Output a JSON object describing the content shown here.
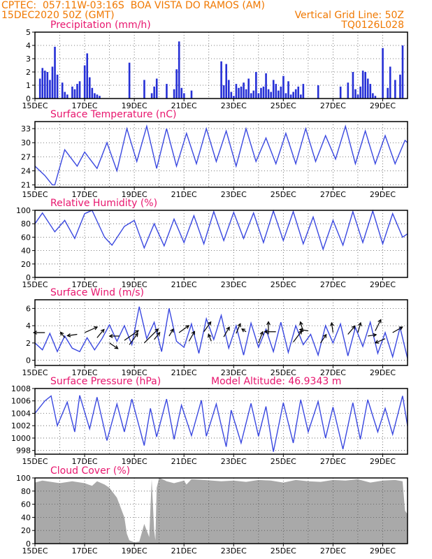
{
  "header": {
    "line1_left": "CPTEC:  057:11W-03:16S  BOA VISTA DO RAMOS (AM)",
    "line2_left": "15DEC2020 50Z (GMT)",
    "line1_right": "Vertical Grid Line: 50Z",
    "line2_right": "TQ0126L028",
    "color": "#f07800"
  },
  "colors": {
    "line": "#3a48e0",
    "bar": "#2630d6",
    "cloud": "#a9a9a9",
    "title": "#e8166e",
    "grid": "#555555"
  },
  "x_ticks": [
    "15DEC",
    "17DEC",
    "19DEC",
    "21DEC",
    "23DEC",
    "25DEC",
    "27DEC",
    "29DEC"
  ],
  "chart_data": [
    {
      "type": "bar",
      "title": "Precipitation (mm/h)",
      "ylim": [
        0,
        5
      ],
      "yticks": [
        0,
        1,
        2,
        3,
        4,
        5
      ],
      "x": [
        0.2,
        0.3,
        0.4,
        0.5,
        0.6,
        0.7,
        0.8,
        0.9,
        1.1,
        1.2,
        1.3,
        1.5,
        1.6,
        1.7,
        1.8,
        2.0,
        2.1,
        2.2,
        2.3,
        2.4,
        2.5,
        2.6,
        3.8,
        4.4,
        4.7,
        4.8,
        4.9,
        5.3,
        5.6,
        5.7,
        5.8,
        5.9,
        6.0,
        6.3,
        7.5,
        7.6,
        7.7,
        7.8,
        7.9,
        8.0,
        8.1,
        8.2,
        8.3,
        8.4,
        8.5,
        8.6,
        8.7,
        8.8,
        8.9,
        9.0,
        9.1,
        9.2,
        9.3,
        9.4,
        9.5,
        9.6,
        9.7,
        9.8,
        9.9,
        10.0,
        10.1,
        10.2,
        10.3,
        10.4,
        10.5,
        10.6,
        10.7,
        10.8,
        11.4,
        12.3,
        12.6,
        12.8,
        12.9,
        13.0,
        13.1,
        13.2,
        13.3,
        13.4,
        13.5,
        13.6,
        13.7,
        14.0,
        14.2,
        14.3,
        14.5,
        14.7,
        14.8
      ],
      "values": [
        1.5,
        2.3,
        2.1,
        2.0,
        1.4,
        2.4,
        3.9,
        1.8,
        1.2,
        0.5,
        0.3,
        0.9,
        0.7,
        1.1,
        1.3,
        2.5,
        3.4,
        1.6,
        0.8,
        0.4,
        0.3,
        0.2,
        2.7,
        1.4,
        0.4,
        0.9,
        1.5,
        1.1,
        0.7,
        2.2,
        4.3,
        0.8,
        0.4,
        0.6,
        2.8,
        1.0,
        2.6,
        1.4,
        0.5,
        0.2,
        1.1,
        0.8,
        0.9,
        1.2,
        0.7,
        1.5,
        0.4,
        0.6,
        2.0,
        0.4,
        0.8,
        0.9,
        1.9,
        0.7,
        0.5,
        1.4,
        1.1,
        0.6,
        0.9,
        1.7,
        0.4,
        1.3,
        0.3,
        0.5,
        0.7,
        0.9,
        0.3,
        1.1,
        1.0,
        0.9,
        1.2,
        2.0,
        0.7,
        0.3,
        0.9,
        2.1,
        2.0,
        1.5,
        1.1,
        0.4,
        0.2,
        3.8,
        0.8,
        2.4,
        1.4,
        1.8,
        4.0
      ]
    },
    {
      "type": "line",
      "title": "Surface Temperature (nC)",
      "ylim": [
        20.5,
        34.5
      ],
      "yticks": [
        21,
        24,
        27,
        30,
        33
      ],
      "x": [
        0,
        0.4,
        0.7,
        0.8,
        1.2,
        1.7,
        2.0,
        2.5,
        2.9,
        3.3,
        3.7,
        4.1,
        4.5,
        4.9,
        5.3,
        5.7,
        6.1,
        6.5,
        6.9,
        7.3,
        7.7,
        8.1,
        8.5,
        8.9,
        9.3,
        9.7,
        10.1,
        10.5,
        10.9,
        11.3,
        11.7,
        12.1,
        12.5,
        12.9,
        13.3,
        13.7,
        14.1,
        14.5,
        14.9,
        15.0
      ],
      "values": [
        25,
        23,
        21,
        21,
        28.5,
        25,
        28,
        24.5,
        30,
        24,
        33,
        26,
        33.5,
        24.5,
        33,
        25,
        32,
        25.5,
        33,
        26,
        32.5,
        25,
        33,
        26,
        31,
        25.5,
        32,
        25.5,
        33,
        26,
        31.5,
        26.5,
        33.5,
        25.5,
        32.5,
        25.5,
        31.5,
        25.5,
        30.5,
        30
      ]
    },
    {
      "type": "line",
      "title": "Relative Humidity (%)",
      "ylim": [
        0,
        100
      ],
      "yticks": [
        0,
        20,
        40,
        60,
        80,
        100
      ],
      "x": [
        0,
        0.3,
        0.8,
        1.2,
        1.6,
        2.0,
        2.3,
        2.8,
        3.1,
        3.6,
        4.0,
        4.4,
        4.8,
        5.2,
        5.6,
        6.0,
        6.4,
        6.8,
        7.2,
        7.6,
        8.0,
        8.4,
        8.8,
        9.2,
        9.6,
        10.0,
        10.4,
        10.8,
        11.2,
        11.6,
        12.0,
        12.4,
        12.8,
        13.2,
        13.6,
        14.0,
        14.4,
        14.8,
        15.0
      ],
      "values": [
        80,
        96,
        68,
        85,
        58,
        95,
        100,
        60,
        48,
        76,
        85,
        44,
        80,
        47,
        87,
        52,
        92,
        50,
        98,
        55,
        97,
        58,
        96,
        52,
        99,
        55,
        98,
        50,
        90,
        42,
        85,
        48,
        98,
        52,
        99,
        50,
        95,
        60,
        65
      ]
    },
    {
      "type": "line",
      "title": "Surface Wind (m/s)",
      "ylim": [
        -0.6,
        7.0
      ],
      "yticks": [
        0,
        2,
        4,
        6
      ],
      "x": [
        0,
        0.3,
        0.6,
        0.9,
        1.2,
        1.5,
        1.8,
        2.1,
        2.4,
        2.7,
        3.0,
        3.3,
        3.6,
        3.9,
        4.2,
        4.5,
        4.8,
        5.1,
        5.4,
        5.7,
        6.0,
        6.3,
        6.6,
        6.9,
        7.2,
        7.5,
        7.8,
        8.1,
        8.4,
        8.7,
        9.0,
        9.3,
        9.6,
        9.9,
        10.2,
        10.5,
        10.8,
        11.1,
        11.4,
        11.7,
        12.0,
        12.3,
        12.6,
        12.9,
        13.2,
        13.5,
        13.8,
        14.1,
        14.4,
        14.7,
        15.0
      ],
      "values": [
        2.0,
        1.2,
        3.1,
        1.0,
        2.8,
        1.4,
        1.0,
        2.6,
        1.2,
        2.5,
        4.1,
        2.2,
        4.0,
        1.8,
        6.2,
        2.5,
        4.4,
        1.0,
        6.0,
        2.2,
        1.5,
        4.2,
        0.8,
        4.8,
        2.4,
        5.2,
        1.4,
        4.0,
        0.6,
        4.3,
        1.5,
        3.6,
        1.0,
        4.4,
        0.9,
        4.0,
        1.8,
        3.0,
        0.6,
        4.0,
        2.0,
        4.2,
        0.5,
        3.8,
        1.6,
        4.4,
        0.8,
        3.2,
        0.4,
        3.8,
        0.2
      ],
      "arrows": [
        {
          "x": 0.4,
          "y": 3.2,
          "dx": -16,
          "dy": 0
        },
        {
          "x": 1.2,
          "y": 2.6,
          "dx": -6,
          "dy": -8
        },
        {
          "x": 1.7,
          "y": 3.0,
          "dx": -14,
          "dy": 2
        },
        {
          "x": 2.0,
          "y": 3.2,
          "dx": 18,
          "dy": -8
        },
        {
          "x": 2.5,
          "y": 2.6,
          "dx": 10,
          "dy": -12
        },
        {
          "x": 3.0,
          "y": 2.0,
          "dx": 12,
          "dy": 8
        },
        {
          "x": 3.4,
          "y": 2.8,
          "dx": -14,
          "dy": 0
        },
        {
          "x": 3.6,
          "y": 2.3,
          "dx": 20,
          "dy": -14
        },
        {
          "x": 3.8,
          "y": 1.8,
          "dx": 12,
          "dy": -16
        },
        {
          "x": 4.4,
          "y": 2.0,
          "dx": 20,
          "dy": -20
        },
        {
          "x": 4.8,
          "y": 2.4,
          "dx": 8,
          "dy": -10
        },
        {
          "x": 5.4,
          "y": 2.8,
          "dx": 6,
          "dy": -10
        },
        {
          "x": 5.8,
          "y": 3.2,
          "dx": 14,
          "dy": -10
        },
        {
          "x": 6.2,
          "y": 2.2,
          "dx": 8,
          "dy": -14
        },
        {
          "x": 6.8,
          "y": 3.3,
          "dx": 10,
          "dy": -14
        },
        {
          "x": 7.1,
          "y": 2.2,
          "dx": -4,
          "dy": -10
        },
        {
          "x": 7.6,
          "y": 2.7,
          "dx": 8,
          "dy": -14
        },
        {
          "x": 8.1,
          "y": 3.1,
          "dx": 6,
          "dy": -14
        },
        {
          "x": 8.5,
          "y": 3.3,
          "dx": -6,
          "dy": -4
        },
        {
          "x": 9.0,
          "y": 2.0,
          "dx": 6,
          "dy": -16
        },
        {
          "x": 9.4,
          "y": 3.0,
          "dx": 0,
          "dy": -18
        },
        {
          "x": 9.7,
          "y": 3.3,
          "dx": -16,
          "dy": 0
        },
        {
          "x": 10.4,
          "y": 2.1,
          "dx": 12,
          "dy": -16
        },
        {
          "x": 10.8,
          "y": 3.3,
          "dx": -4,
          "dy": -14
        },
        {
          "x": 11.0,
          "y": 3.4,
          "dx": -12,
          "dy": -2
        },
        {
          "x": 11.5,
          "y": 2.0,
          "dx": 8,
          "dy": -12
        },
        {
          "x": 12.0,
          "y": 3.2,
          "dx": -2,
          "dy": -14
        },
        {
          "x": 12.6,
          "y": 3.0,
          "dx": 10,
          "dy": -12
        },
        {
          "x": 13.0,
          "y": 3.2,
          "dx": 4,
          "dy": -14
        },
        {
          "x": 13.4,
          "y": 2.8,
          "dx": 12,
          "dy": -2
        },
        {
          "x": 13.7,
          "y": 3.4,
          "dx": 8,
          "dy": -16
        },
        {
          "x": 14.1,
          "y": 2.5,
          "dx": -14,
          "dy": 6
        },
        {
          "x": 14.4,
          "y": 3.2,
          "dx": 14,
          "dy": -8
        }
      ]
    },
    {
      "type": "line",
      "title": "Surface Pressure (hPa)",
      "annotation": "Model Altitude: 46.9343 m",
      "ylim": [
        997.4,
        1008
      ],
      "yticks": [
        998,
        1000,
        1002,
        1004,
        1006,
        1008
      ],
      "x": [
        0,
        0.4,
        0.65,
        0.9,
        1.3,
        1.6,
        1.8,
        2.2,
        2.5,
        2.9,
        3.3,
        3.6,
        3.9,
        4.4,
        4.65,
        4.9,
        5.3,
        5.6,
        5.9,
        6.3,
        6.7,
        6.9,
        7.3,
        7.7,
        7.9,
        8.3,
        8.7,
        9.0,
        9.3,
        9.6,
        10.0,
        10.4,
        10.7,
        11.0,
        11.4,
        11.7,
        12.0,
        12.4,
        12.8,
        13.1,
        13.4,
        13.8,
        14.1,
        14.4,
        14.8,
        15.0
      ],
      "values": [
        1004,
        1006,
        1006.8,
        1002,
        1005.8,
        1001,
        1006.9,
        1001.5,
        1006.6,
        999.6,
        1005.5,
        1001,
        1006.3,
        998.8,
        1004.8,
        1000.2,
        1006.3,
        999.8,
        1005.3,
        1000.4,
        1006.1,
        1000.3,
        1005.5,
        998.6,
        1004.5,
        999.2,
        1005.6,
        1000.3,
        1005.1,
        997.8,
        1005.7,
        999.2,
        1006.2,
        1001,
        1005.9,
        1000,
        1005,
        998.2,
        1005.7,
        999.8,
        1006.2,
        1001,
        1004.8,
        1000.6,
        1006.8,
        1002
      ]
    },
    {
      "type": "area",
      "title": "Cloud Cover (%)",
      "ylim": [
        0,
        100
      ],
      "yticks": [
        0,
        20,
        40,
        60,
        80,
        100
      ],
      "x": [
        0,
        0.3,
        1.0,
        1.5,
        2.0,
        2.3,
        2.5,
        2.8,
        3.0,
        3.3,
        3.6,
        3.7,
        3.8,
        4.0,
        4.2,
        4.4,
        4.6,
        4.7,
        4.8,
        4.85,
        4.9,
        5.0,
        5.2,
        5.3,
        5.6,
        6.0,
        6.1,
        6.3,
        6.8,
        7.5,
        8.0,
        8.5,
        9.0,
        9.5,
        10.0,
        10.5,
        11.0,
        11.5,
        12.0,
        12.5,
        13.0,
        13.5,
        14.0,
        14.5,
        14.8,
        14.9,
        15.0
      ],
      "values": [
        93,
        96,
        92,
        95,
        92,
        88,
        95,
        90,
        85,
        70,
        40,
        15,
        5,
        2,
        3,
        30,
        10,
        98,
        20,
        5,
        85,
        100,
        97,
        95,
        92,
        96,
        90,
        98,
        97,
        95,
        96,
        94,
        97,
        96,
        93,
        97,
        95,
        94,
        97,
        96,
        98,
        93,
        96,
        97,
        95,
        50,
        45
      ]
    }
  ]
}
